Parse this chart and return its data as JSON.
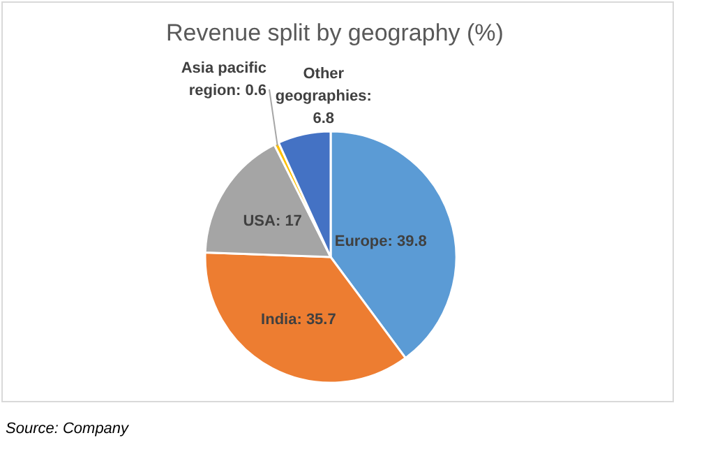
{
  "chart_data": {
    "type": "pie",
    "title": "Revenue split by geography (%)",
    "categories": [
      "Europe",
      "India",
      "USA",
      "Asia pacific region",
      "Other geographies"
    ],
    "values": [
      39.8,
      35.7,
      17,
      0.6,
      6.8
    ],
    "colors": [
      "#5b9bd5",
      "#ed7d31",
      "#a5a5a5",
      "#ffc000",
      "#4472c4"
    ],
    "value_labels": [
      ": 39.8",
      ": 35.7",
      ": 17",
      ": 0.6",
      ": 6.8"
    ],
    "annotations": [
      "Source: Company"
    ]
  }
}
